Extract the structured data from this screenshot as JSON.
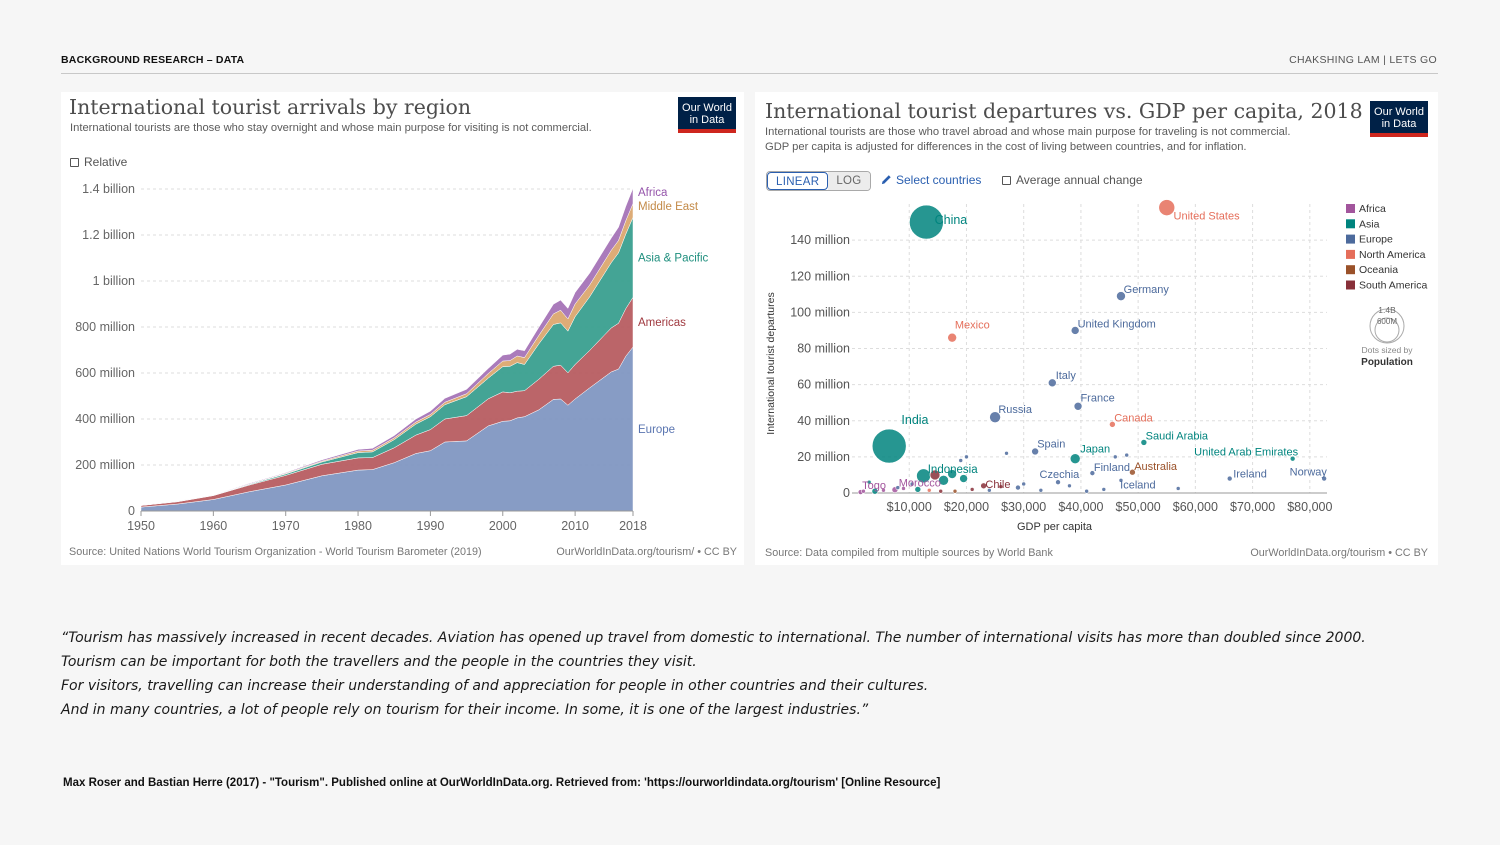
{
  "header": {
    "left": "BACKGROUND RESEARCH –  DATA",
    "right": "CHAKSHING LAM | LETS GO"
  },
  "logo": {
    "line1": "Our World",
    "line2": "in Data"
  },
  "chart1": {
    "title": "International tourist arrivals by region",
    "subtitle": "International tourists are those who stay overnight and whose main purpose for visiting is not commercial.",
    "relative_label": "Relative",
    "source": "Source: United Nations World Tourism Organization - World Tourism Barometer (2019)",
    "credit": "OurWorldInData.org/tourism/ • CC BY"
  },
  "chart2": {
    "title": "International tourist departures vs. GDP per capita, 2018",
    "subtitle_1": "International tourists are those who travel abroad and whose main purpose for traveling is not commercial.",
    "subtitle_2": "GDP per capita is adjusted for differences in the cost of living between countries, and for inflation.",
    "linear_label": "LINEAR",
    "log_label": "LOG",
    "select_label": "Select countries",
    "avg_label": "Average annual change",
    "source": "Source: Data compiled from multiple sources by World Bank",
    "credit": "OurWorldInData.org/tourism • CC BY",
    "size_legend_big": "1.4B",
    "size_legend_small": "600M",
    "size_legend_caption": "Dots sized by",
    "size_legend_var": "Population"
  },
  "quote": {
    "line1": "“Tourism has massively increased in recent decades. Aviation has opened up travel from domestic to international. The number of international visits has more than doubled since 2000.",
    "line2": "Tourism can be important for both the travellers and the people in the countries they visit.",
    "line3": "For visitors, travelling can increase their understanding of and appreciation for people in other countries and their cultures.",
    "line4": "And in many countries, a lot of people rely on tourism for their income. In some, it is one of the largest industries.”"
  },
  "citation": "Max Roser and Bastian Herre (2017) - \"Tourism\". Published online at OurWorldInData.org. Retrieved from: 'https://ourworldindata.org/tourism' [Online Resource]",
  "chart_data": [
    {
      "type": "area",
      "title": "International tourist arrivals by region",
      "stacked": true,
      "x": [
        1950,
        1955,
        1960,
        1965,
        1970,
        1975,
        1980,
        1982,
        1985,
        1988,
        1990,
        1992,
        1995,
        1998,
        2000,
        2001,
        2002,
        2003,
        2005,
        2007,
        2008,
        2009,
        2010,
        2012,
        2015,
        2016,
        2017,
        2018
      ],
      "ylim": [
        0,
        1400000000
      ],
      "yticks": [
        0,
        200000000,
        400000000,
        600000000,
        800000000,
        1000000000,
        1200000000,
        1400000000
      ],
      "ytick_labels": [
        "0",
        "200 million",
        "400 million",
        "600 million",
        "800 million",
        "1 billion",
        "1.2 billion",
        "1.4 billion"
      ],
      "xticks": [
        1950,
        1960,
        1970,
        1980,
        1990,
        2000,
        2010,
        2018
      ],
      "series": [
        {
          "name": "Europe",
          "color": "#8197c2",
          "values": [
            17000000,
            30000000,
            50000000,
            84000000,
            113000000,
            153000000,
            178000000,
            180000000,
            210000000,
            250000000,
            262000000,
            300000000,
            305000000,
            370000000,
            390000000,
            392000000,
            405000000,
            410000000,
            440000000,
            485000000,
            487000000,
            460000000,
            487000000,
            535000000,
            605000000,
            617000000,
            673000000,
            713000000
          ]
        },
        {
          "name": "Americas",
          "color": "#b85d62",
          "values": [
            7000000,
            10000000,
            17000000,
            29000000,
            42000000,
            50000000,
            53000000,
            52000000,
            65000000,
            80000000,
            92000000,
            100000000,
            110000000,
            118000000,
            128000000,
            122000000,
            116000000,
            113000000,
            133000000,
            144000000,
            147000000,
            141000000,
            150000000,
            163000000,
            191000000,
            199000000,
            207000000,
            216000000
          ]
        },
        {
          "name": "Asia & Pacific",
          "color": "#3aa090",
          "values": [
            300000,
            700000,
            1000000,
            3000000,
            6000000,
            10000000,
            23000000,
            25000000,
            35000000,
            48000000,
            56000000,
            62000000,
            82000000,
            90000000,
            110000000,
            115000000,
            124000000,
            114000000,
            154000000,
            182000000,
            184000000,
            181000000,
            208000000,
            233000000,
            284000000,
            306000000,
            324000000,
            348000000
          ]
        },
        {
          "name": "Middle East",
          "color": "#dca870",
          "values": [
            200000,
            600000,
            600000,
            1500000,
            3000000,
            4000000,
            7000000,
            7500000,
            8000000,
            9000000,
            9500000,
            11000000,
            13000000,
            20000000,
            24000000,
            25000000,
            29000000,
            30000000,
            37000000,
            46000000,
            55000000,
            53000000,
            55000000,
            51000000,
            54000000,
            54000000,
            58000000,
            60000000
          ]
        },
        {
          "name": "Africa",
          "color": "#a674b8",
          "values": [
            500000,
            1000000,
            750000,
            3000000,
            3000000,
            5000000,
            7000000,
            8000000,
            10000000,
            13000000,
            15000000,
            17000000,
            19000000,
            22000000,
            26000000,
            28000000,
            29000000,
            30000000,
            35000000,
            42000000,
            44000000,
            46000000,
            50000000,
            52000000,
            53000000,
            58000000,
            63000000,
            67000000
          ]
        }
      ]
    },
    {
      "type": "scatter",
      "title": "International tourist departures vs. GDP per capita, 2018",
      "xlabel": "GDP per capita",
      "ylabel": "International tourist departures",
      "xlim": [
        0,
        83000
      ],
      "ylim": [
        0,
        160000000
      ],
      "xticks": [
        10000,
        20000,
        30000,
        40000,
        50000,
        60000,
        70000,
        80000
      ],
      "xtick_labels": [
        "$10,000",
        "$20,000",
        "$30,000",
        "$40,000",
        "$50,000",
        "$60,000",
        "$70,000",
        "$80,000"
      ],
      "yticks": [
        0,
        20000000,
        40000000,
        60000000,
        80000000,
        100000000,
        120000000,
        140000000
      ],
      "ytick_labels": [
        "0",
        "20 million",
        "40 million",
        "60 million",
        "80 million",
        "100 million",
        "120 million",
        "140 million"
      ],
      "legend": [
        {
          "name": "Africa",
          "color": "#a2559c"
        },
        {
          "name": "Asia",
          "color": "#00847e"
        },
        {
          "name": "Europe",
          "color": "#4c6a9c"
        },
        {
          "name": "North America",
          "color": "#e56e5a"
        },
        {
          "name": "Oceania",
          "color": "#9a5129"
        },
        {
          "name": "South America",
          "color": "#883039"
        }
      ],
      "points": [
        {
          "label": "China",
          "x": 13000,
          "y": 150000000,
          "r": 17,
          "color": "#00847e"
        },
        {
          "label": "United States",
          "x": 55000,
          "y": 158000000,
          "r": 8,
          "color": "#e56e5a"
        },
        {
          "label": "India",
          "x": 6500,
          "y": 26000000,
          "r": 17,
          "color": "#00847e"
        },
        {
          "label": "Germany",
          "x": 47000,
          "y": 109000000,
          "r": 4.5,
          "color": "#4c6a9c"
        },
        {
          "label": "United Kingdom",
          "x": 39000,
          "y": 90000000,
          "r": 4,
          "color": "#4c6a9c"
        },
        {
          "label": "Mexico",
          "x": 17500,
          "y": 86000000,
          "r": 4.5,
          "color": "#e56e5a"
        },
        {
          "label": "Italy",
          "x": 35000,
          "y": 61000000,
          "r": 4,
          "color": "#4c6a9c"
        },
        {
          "label": "France",
          "x": 39500,
          "y": 48000000,
          "r": 4,
          "color": "#4c6a9c"
        },
        {
          "label": "Russia",
          "x": 25000,
          "y": 42000000,
          "r": 5.5,
          "color": "#4c6a9c"
        },
        {
          "label": "Canada",
          "x": 45500,
          "y": 38000000,
          "r": 3,
          "color": "#e56e5a"
        },
        {
          "label": "Saudi Arabia",
          "x": 51000,
          "y": 28000000,
          "r": 3,
          "color": "#00847e"
        },
        {
          "label": "Spain",
          "x": 32000,
          "y": 23000000,
          "r": 3.5,
          "color": "#4c6a9c"
        },
        {
          "label": "Japan",
          "x": 39000,
          "y": 19000000,
          "r": 5,
          "color": "#00847e"
        },
        {
          "label": "United Arab Emirates",
          "x": 77000,
          "y": 19000000,
          "r": 2.5,
          "color": "#00847e"
        },
        {
          "label": "Indonesia",
          "x": 12500,
          "y": 9500000,
          "r": 7,
          "color": "#00847e"
        },
        {
          "label": "Australia",
          "x": 49000,
          "y": 11500000,
          "r": 3,
          "color": "#9a5129"
        },
        {
          "label": "Finland",
          "x": 42000,
          "y": 11000000,
          "r": 2.5,
          "color": "#4c6a9c"
        },
        {
          "label": "Ireland",
          "x": 66000,
          "y": 8000000,
          "r": 2.5,
          "color": "#4c6a9c"
        },
        {
          "label": "Norway",
          "x": 82500,
          "y": 8000000,
          "r": 2.5,
          "color": "#4c6a9c"
        },
        {
          "label": "Czechia",
          "x": 36000,
          "y": 6000000,
          "r": 2.5,
          "color": "#4c6a9c"
        },
        {
          "label": "Chile",
          "x": 23000,
          "y": 4000000,
          "r": 3,
          "color": "#883039"
        },
        {
          "label": "Iceland",
          "x": 47000,
          "y": 7000000,
          "r": 2,
          "color": "#4c6a9c"
        },
        {
          "label": "Morocco",
          "x": 7500,
          "y": 1800000,
          "r": 3,
          "color": "#a2559c"
        },
        {
          "label": "Togo",
          "x": 1500,
          "y": 500000,
          "r": 2.5,
          "color": "#a2559c"
        },
        {
          "label": "",
          "x": 14500,
          "y": 10000000,
          "r": 5,
          "color": "#883039"
        },
        {
          "label": "",
          "x": 16000,
          "y": 7000000,
          "r": 5,
          "color": "#00847e"
        },
        {
          "label": "",
          "x": 19500,
          "y": 8000000,
          "r": 4,
          "color": "#00847e"
        },
        {
          "label": "",
          "x": 17500,
          "y": 10500000,
          "r": 4.5,
          "color": "#00847e"
        },
        {
          "label": "",
          "x": 11500,
          "y": 2000000,
          "r": 3,
          "color": "#00847e"
        },
        {
          "label": "",
          "x": 4000,
          "y": 1000000,
          "r": 3,
          "color": "#00847e"
        },
        {
          "label": "",
          "x": 3000,
          "y": 6000000,
          "r": 2,
          "color": "#00847e"
        },
        {
          "label": "",
          "x": 2000,
          "y": 1000000,
          "r": 2,
          "color": "#a2559c"
        },
        {
          "label": "",
          "x": 5500,
          "y": 1500000,
          "r": 2,
          "color": "#a2559c"
        },
        {
          "label": "",
          "x": 9000,
          "y": 2500000,
          "r": 2,
          "color": "#a2559c"
        },
        {
          "label": "",
          "x": 13500,
          "y": 1500000,
          "r": 2,
          "color": "#e56e5a"
        },
        {
          "label": "",
          "x": 15500,
          "y": 1000000,
          "r": 2,
          "color": "#883039"
        },
        {
          "label": "",
          "x": 20000,
          "y": 20000000,
          "r": 2,
          "color": "#4c6a9c"
        },
        {
          "label": "",
          "x": 19000,
          "y": 18000000,
          "r": 2,
          "color": "#4c6a9c"
        },
        {
          "label": "",
          "x": 27000,
          "y": 22000000,
          "r": 2,
          "color": "#4c6a9c"
        },
        {
          "label": "",
          "x": 24000,
          "y": 1500000,
          "r": 2,
          "color": "#4c6a9c"
        },
        {
          "label": "",
          "x": 29000,
          "y": 3000000,
          "r": 2.5,
          "color": "#4c6a9c"
        },
        {
          "label": "",
          "x": 33000,
          "y": 1500000,
          "r": 2,
          "color": "#4c6a9c"
        },
        {
          "label": "",
          "x": 38000,
          "y": 4000000,
          "r": 2,
          "color": "#4c6a9c"
        },
        {
          "label": "",
          "x": 44000,
          "y": 2000000,
          "r": 2,
          "color": "#4c6a9c"
        },
        {
          "label": "",
          "x": 48000,
          "y": 21000000,
          "r": 2,
          "color": "#4c6a9c"
        },
        {
          "label": "",
          "x": 46000,
          "y": 20000000,
          "r": 2,
          "color": "#4c6a9c"
        },
        {
          "label": "",
          "x": 57000,
          "y": 2500000,
          "r": 2,
          "color": "#4c6a9c"
        },
        {
          "label": "",
          "x": 41000,
          "y": 1000000,
          "r": 2,
          "color": "#4c6a9c"
        },
        {
          "label": "",
          "x": 30000,
          "y": 5000000,
          "r": 2,
          "color": "#4c6a9c"
        },
        {
          "label": "",
          "x": 21000,
          "y": 2000000,
          "r": 2,
          "color": "#883039"
        },
        {
          "label": "",
          "x": 26000,
          "y": 3500000,
          "r": 2,
          "color": "#883039"
        },
        {
          "label": "",
          "x": 18000,
          "y": 1000000,
          "r": 2,
          "color": "#9a5129"
        },
        {
          "label": "",
          "x": 8000,
          "y": 3000000,
          "r": 2,
          "color": "#4c6a9c"
        },
        {
          "label": "",
          "x": 10500,
          "y": 5000000,
          "r": 2,
          "color": "#4c6a9c"
        }
      ]
    }
  ]
}
